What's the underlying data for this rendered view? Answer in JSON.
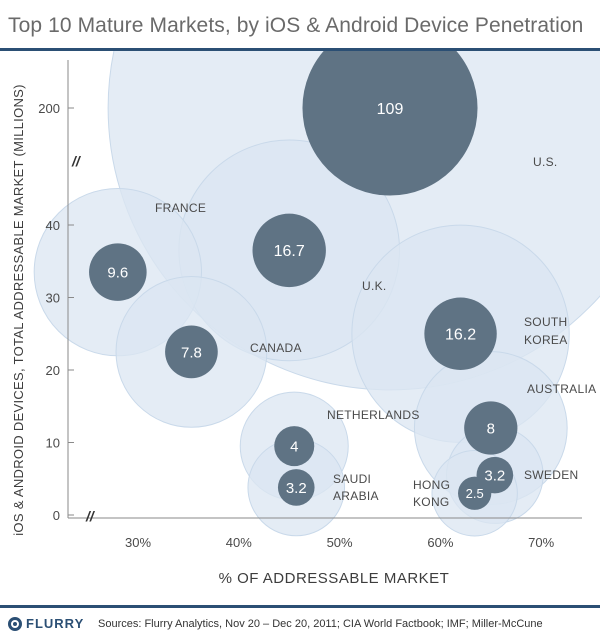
{
  "title": "Top 10 Mature Markets, by iOS & Android Device Penetration",
  "footer": {
    "brand": "FLURRY",
    "brand_icon": "flurry-logo-icon",
    "sources": "Sources: Flurry Analytics, Nov 20 – Dec 20, 2011; CIA World Factbook; IMF; Miller-McCune"
  },
  "colors": {
    "outer_bubble": "#dbe6f1",
    "inner_bubble": "#5f7384",
    "rule": "#2b4f74",
    "text": "#4a4a4a"
  },
  "chart_data": {
    "type": "scatter",
    "title": "Top 10 Mature Markets, by iOS & Android Device Penetration",
    "xlabel": "% OF ADDRESSABLE MARKET",
    "ylabel": "iOS & ANDROID DEVICES, TOTAL ADDRESSABLE MARKET (MILLIONS)",
    "xlim": [
      25,
      75
    ],
    "ylim": [
      0,
      200
    ],
    "x_ticks": [
      30,
      40,
      50,
      60,
      70
    ],
    "x_tick_labels": [
      "30%",
      "40%",
      "50%",
      "60%",
      "70%"
    ],
    "y_ticks": [
      0,
      10,
      20,
      30,
      40,
      200
    ],
    "y_tick_labels": [
      "0",
      "10",
      "20",
      "30",
      "40",
      "200"
    ],
    "axis_break_symbol": "//",
    "points": [
      {
        "country": "U.S.",
        "x": 55,
        "y": 200,
        "devices": 109,
        "label": "109",
        "market": 200
      },
      {
        "country": "FRANCE",
        "x": 28,
        "y": 33.5,
        "devices": 9.6,
        "label": "9.6",
        "market": 33.5
      },
      {
        "country": "U.K.",
        "x": 45,
        "y": 36.5,
        "devices": 16.7,
        "label": "16.7",
        "market": 36.5
      },
      {
        "country": "CANADA",
        "x": 35.3,
        "y": 22.5,
        "devices": 7.8,
        "label": "7.8",
        "market": 22.5
      },
      {
        "country": "SOUTH KOREA",
        "x": 62,
        "y": 25,
        "devices": 16.2,
        "label": "16.2",
        "market": 25
      },
      {
        "country": "AUSTRALIA",
        "x": 65,
        "y": 12,
        "devices": 8,
        "label": "8",
        "market": 12
      },
      {
        "country": "NETHERLANDS",
        "x": 45.5,
        "y": 9.5,
        "devices": 4,
        "label": "4",
        "market": 9.5
      },
      {
        "country": "SAUDI ARABIA",
        "x": 45.7,
        "y": 3.8,
        "devices": 3.2,
        "label": "3.2",
        "market": 3.8
      },
      {
        "country": "SWEDEN",
        "x": 65.4,
        "y": 5.5,
        "devices": 3.2,
        "label": "3.2",
        "market": 5.5
      },
      {
        "country": "HONG KONG",
        "x": 63.4,
        "y": 3,
        "devices": 2.5,
        "label": "2.5",
        "market": 3
      }
    ],
    "country_labels": [
      {
        "text": "U.S.",
        "country": "U.S."
      },
      {
        "text": "FRANCE",
        "country": "FRANCE"
      },
      {
        "text": "U.K.",
        "country": "U.K."
      },
      {
        "text": "CANADA",
        "country": "CANADA"
      },
      {
        "text": "SOUTH",
        "country": "SOUTH KOREA"
      },
      {
        "text": "KOREA",
        "country": "SOUTH KOREA"
      },
      {
        "text": "AUSTRALIA",
        "country": "AUSTRALIA"
      },
      {
        "text": "NETHERLANDS",
        "country": "NETHERLANDS"
      },
      {
        "text": "SAUDI",
        "country": "SAUDI ARABIA"
      },
      {
        "text": "ARABIA",
        "country": "SAUDI ARABIA"
      },
      {
        "text": "SWEDEN",
        "country": "SWEDEN"
      },
      {
        "text": "HONG",
        "country": "HONG KONG"
      },
      {
        "text": "KONG",
        "country": "HONG KONG"
      }
    ]
  }
}
